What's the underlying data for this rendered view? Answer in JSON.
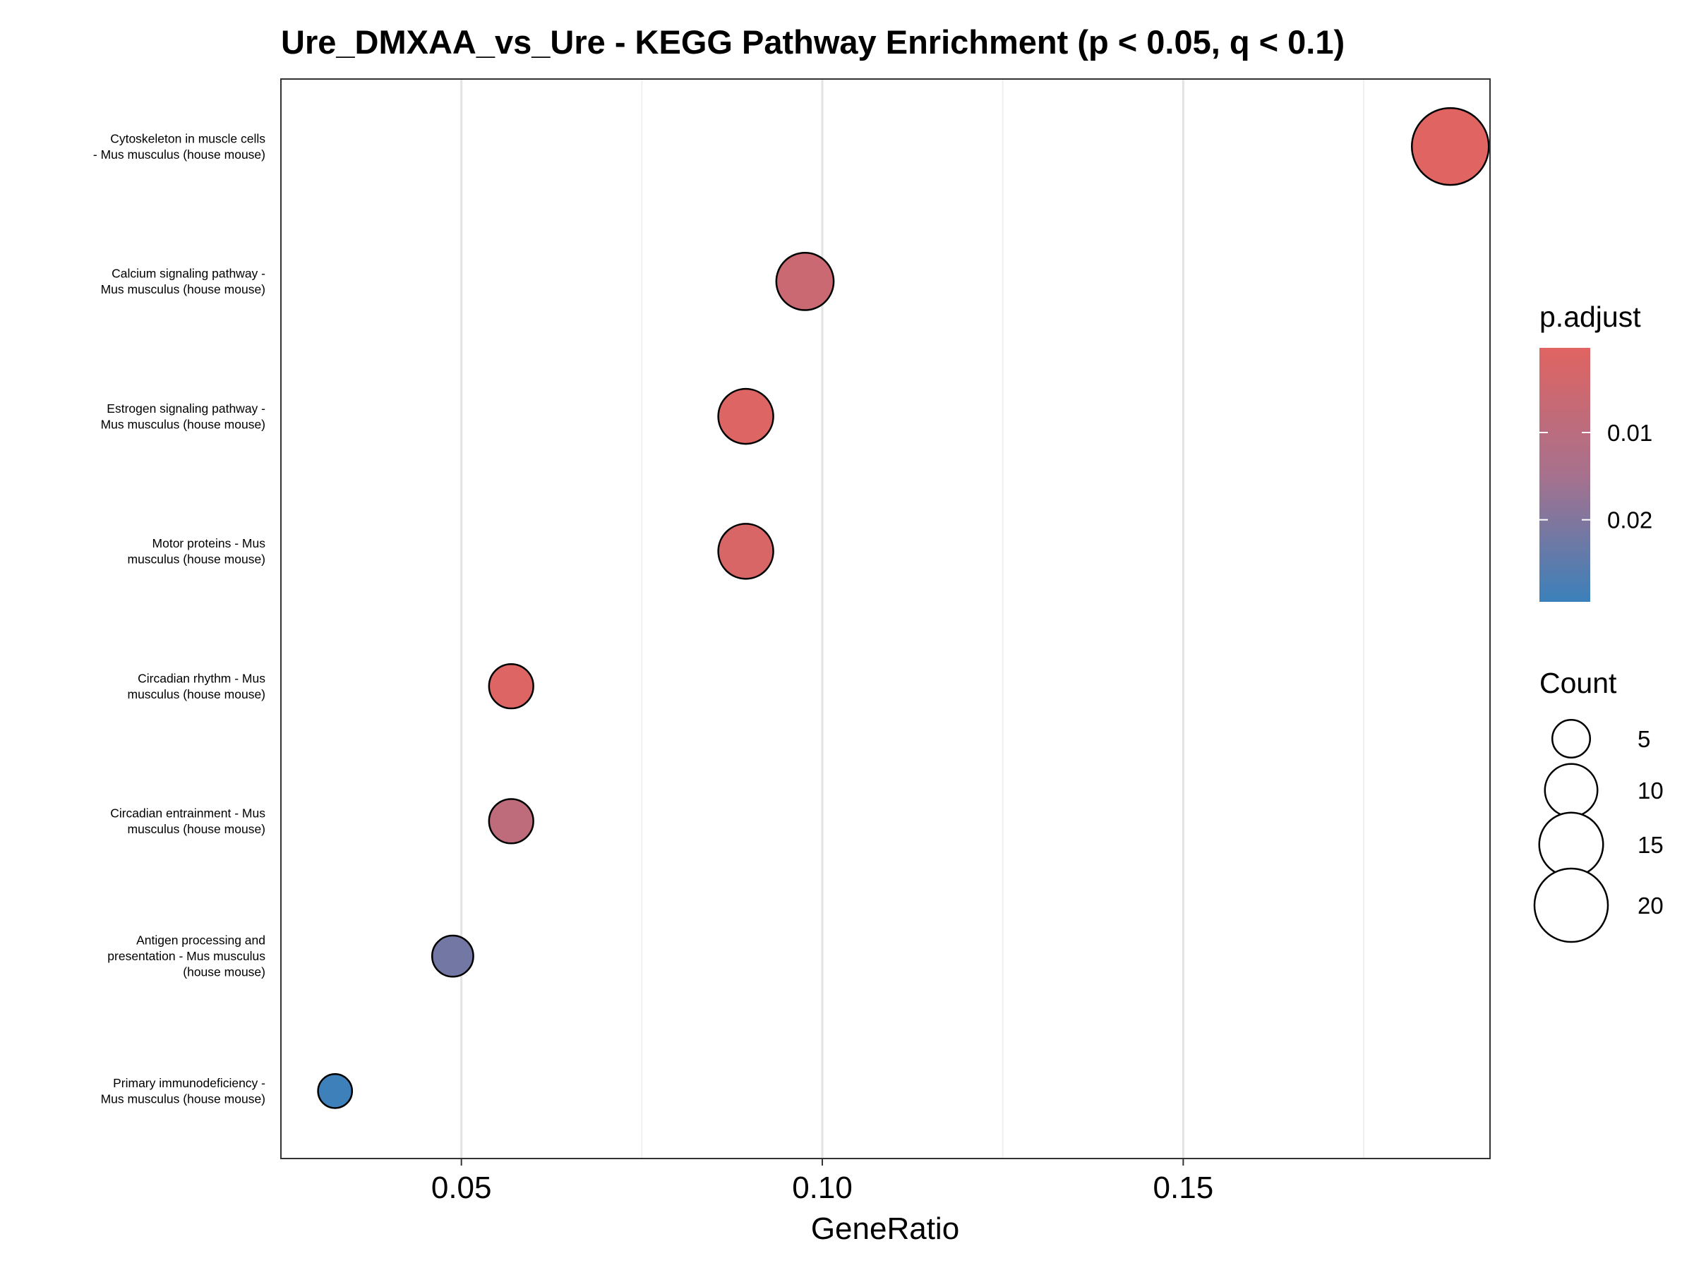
{
  "chart_data": {
    "type": "scatter",
    "title": "Ure_DMXAA_vs_Ure - KEGG Pathway Enrichment (p < 0.05, q < 0.1)",
    "xlabel": "GeneRatio",
    "ylabel": "",
    "xlim": [
      0.025,
      0.1925
    ],
    "x_ticks": [
      0.05,
      0.1,
      0.15
    ],
    "x_tick_labels": [
      "0.05",
      "0.10",
      "0.15"
    ],
    "grid": "vertical",
    "points": [
      {
        "label_lines": [
          "Cytoskeleton in muscle cells",
          "- Mus musculus (house mouse)"
        ],
        "x": 0.187,
        "count": 22,
        "p_adjust": 0.0003
      },
      {
        "label_lines": [
          "Calcium signaling pathway -",
          "Mus musculus (house mouse)"
        ],
        "x": 0.0976,
        "count": 12,
        "p_adjust": 0.006
      },
      {
        "label_lines": [
          "Estrogen signaling pathway -",
          "Mus musculus (house mouse)"
        ],
        "x": 0.0894,
        "count": 11,
        "p_adjust": 0.001
      },
      {
        "label_lines": [
          "Motor proteins - Mus",
          "musculus (house mouse)"
        ],
        "x": 0.0894,
        "count": 11,
        "p_adjust": 0.002
      },
      {
        "label_lines": [
          "Circadian rhythm - Mus",
          "musculus (house mouse)"
        ],
        "x": 0.0569,
        "count": 7,
        "p_adjust": 0.001
      },
      {
        "label_lines": [
          "Circadian entrainment - Mus",
          "musculus (house mouse)"
        ],
        "x": 0.0569,
        "count": 7,
        "p_adjust": 0.009
      },
      {
        "label_lines": [
          "Antigen processing and",
          "presentation - Mus musculus",
          "(house mouse)"
        ],
        "x": 0.0488,
        "count": 6,
        "p_adjust": 0.022
      },
      {
        "label_lines": [
          "Primary immunodeficiency -",
          "Mus musculus (house mouse)"
        ],
        "x": 0.0325,
        "count": 4,
        "p_adjust": 0.029
      }
    ],
    "color_legend": {
      "title": "p.adjust",
      "range": [
        0.0003,
        0.0294
      ],
      "low_color": "#E06461",
      "mid_color": "#A7718D",
      "high_color": "#3B80BA",
      "ticks": [
        0.01,
        0.02
      ],
      "tick_labels": [
        "0.01",
        "0.02"
      ]
    },
    "size_legend": {
      "title": "Count",
      "values": [
        5,
        10,
        15,
        20
      ],
      "labels": [
        "5",
        "10",
        "15",
        "20"
      ]
    },
    "legend_position": "right"
  }
}
